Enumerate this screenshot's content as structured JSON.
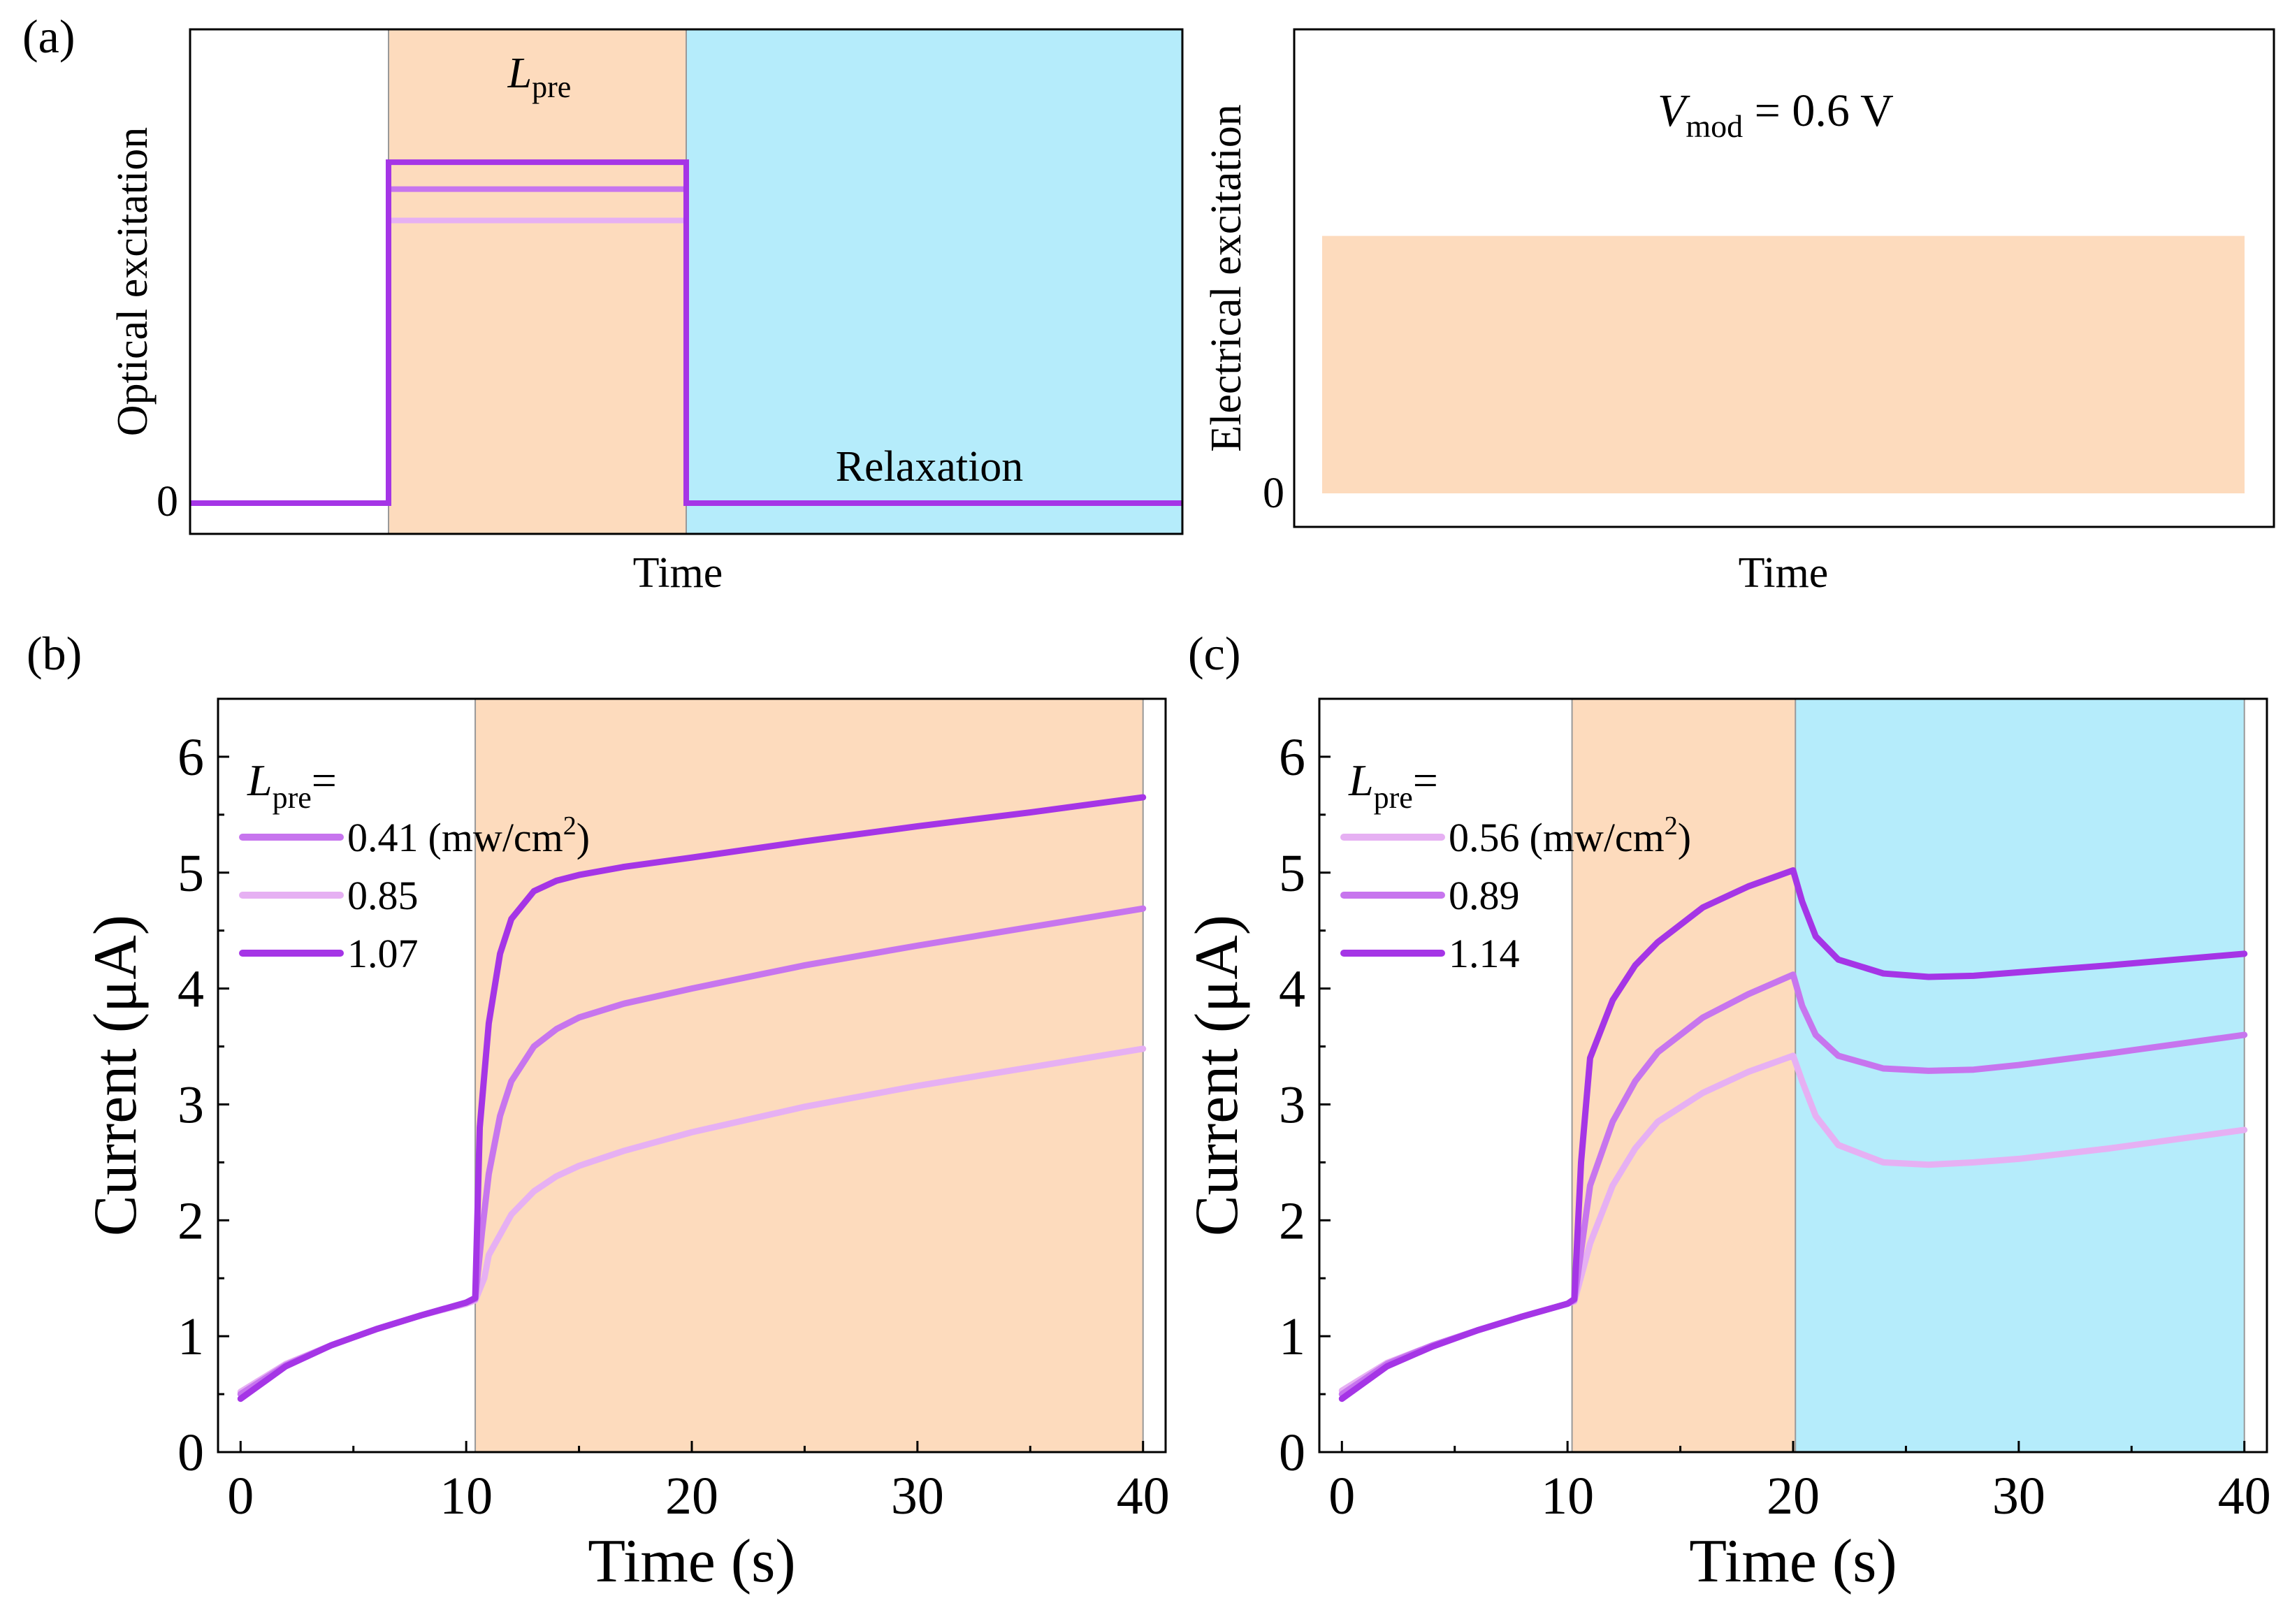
{
  "colors": {
    "orange": "#fddbbd",
    "cyan": "#b5ecfb",
    "light": "#e6b0f3",
    "mid": "#c775ee",
    "dark": "#a535e6"
  },
  "panel_labels": {
    "a": "(a)",
    "b": "(b)",
    "c": "(c)"
  },
  "chart_data": [
    {
      "type": "line",
      "panel": "a-left",
      "ylabel": "Optical excitation",
      "xlabel": "Time",
      "y_tick": "0",
      "annotations": {
        "lpre_main": "L",
        "lpre_sub": "pre",
        "relaxation": "Relaxation"
      },
      "shading": [
        {
          "from": 0.2,
          "to": 0.5,
          "color": "orange"
        },
        {
          "from": 0.5,
          "to": 1.0,
          "color": "cyan"
        }
      ],
      "x": [
        0,
        0.2,
        0.2,
        0.5,
        0.5,
        1.0
      ],
      "series": [
        {
          "color": "light",
          "values": [
            0,
            0,
            0.63,
            0.63,
            0,
            0
          ]
        },
        {
          "color": "mid",
          "values": [
            0,
            0,
            0.7,
            0.7,
            0,
            0
          ]
        },
        {
          "color": "dark",
          "values": [
            0,
            0,
            0.76,
            0.76,
            0,
            0
          ]
        }
      ],
      "ylim": [
        0,
        1
      ]
    },
    {
      "type": "area",
      "panel": "a-right",
      "ylabel": "Electrical excitation",
      "xlabel": "Time",
      "y_tick": "0",
      "annotation": {
        "main": "V",
        "sub": "mod",
        "rest": " = 0.6 V"
      },
      "level": 0.6,
      "ylim": [
        0,
        1
      ]
    },
    {
      "type": "line",
      "panel": "b",
      "xlabel": "Time (s)",
      "ylabel": "Current (μA)",
      "xlim": [
        -1,
        41
      ],
      "ylim": [
        0,
        6.5
      ],
      "xticks": [
        0,
        10,
        20,
        30,
        40
      ],
      "yticks": [
        0,
        1,
        2,
        3,
        4,
        5,
        6
      ],
      "shading": [
        {
          "from": 10.4,
          "to": 40,
          "color": "orange"
        }
      ],
      "legend": {
        "title_main": "L",
        "title_sub": "pre",
        "title_eq": "=",
        "entries": [
          {
            "color": "mid",
            "label": "0.41",
            "unit_a": "(mw/cm",
            "unit_sup": "2",
            "unit_b": ")"
          },
          {
            "color": "light",
            "label": "0.85"
          },
          {
            "color": "dark",
            "label": "1.07"
          }
        ]
      },
      "series": [
        {
          "color": "light",
          "x": [
            0,
            2,
            4,
            6,
            8,
            10,
            10.4,
            10.8,
            11,
            12,
            13,
            14,
            15,
            17,
            20,
            25,
            30,
            35,
            40
          ],
          "values": [
            0.52,
            0.76,
            0.92,
            1.06,
            1.18,
            1.28,
            1.31,
            1.5,
            1.7,
            2.05,
            2.25,
            2.38,
            2.47,
            2.6,
            2.76,
            2.98,
            3.16,
            3.32,
            3.48
          ]
        },
        {
          "color": "mid",
          "x": [
            0,
            2,
            4,
            6,
            8,
            10,
            10.4,
            10.7,
            11,
            11.5,
            12,
            13,
            14,
            15,
            17,
            20,
            25,
            30,
            35,
            40
          ],
          "values": [
            0.5,
            0.75,
            0.92,
            1.06,
            1.18,
            1.29,
            1.32,
            1.9,
            2.4,
            2.9,
            3.2,
            3.5,
            3.65,
            3.75,
            3.87,
            4.0,
            4.2,
            4.37,
            4.53,
            4.69
          ]
        },
        {
          "color": "dark",
          "x": [
            0,
            2,
            4,
            6,
            8,
            10,
            10.4,
            10.6,
            11,
            11.5,
            12,
            13,
            14,
            15,
            17,
            20,
            25,
            30,
            35,
            40
          ],
          "values": [
            0.46,
            0.74,
            0.92,
            1.06,
            1.18,
            1.29,
            1.33,
            2.8,
            3.7,
            4.3,
            4.6,
            4.84,
            4.93,
            4.98,
            5.05,
            5.13,
            5.27,
            5.4,
            5.52,
            5.65
          ]
        }
      ]
    },
    {
      "type": "line",
      "panel": "c",
      "xlabel": "Time (s)",
      "ylabel": "Current (μA)",
      "xlim": [
        -1,
        41
      ],
      "ylim": [
        0,
        6.5
      ],
      "xticks": [
        0,
        10,
        20,
        30,
        40
      ],
      "yticks": [
        0,
        1,
        2,
        3,
        4,
        5,
        6
      ],
      "shading": [
        {
          "from": 10.2,
          "to": 20.1,
          "color": "orange"
        },
        {
          "from": 20.1,
          "to": 40,
          "color": "cyan"
        }
      ],
      "legend": {
        "title_main": "L",
        "title_sub": "pre",
        "title_eq": "=",
        "entries": [
          {
            "color": "light",
            "label": "0.56",
            "unit_a": "(mw/cm",
            "unit_sup": "2",
            "unit_b": ")"
          },
          {
            "color": "mid",
            "label": "0.89"
          },
          {
            "color": "dark",
            "label": "1.14"
          }
        ]
      },
      "series": [
        {
          "color": "light",
          "x": [
            0,
            2,
            4,
            6,
            8,
            10,
            10.3,
            11,
            12,
            13,
            14,
            16,
            18,
            20,
            20.4,
            21,
            22,
            24,
            26,
            28,
            30,
            34,
            40
          ],
          "values": [
            0.53,
            0.77,
            0.92,
            1.05,
            1.17,
            1.28,
            1.3,
            1.8,
            2.3,
            2.62,
            2.85,
            3.1,
            3.28,
            3.42,
            3.2,
            2.9,
            2.65,
            2.5,
            2.48,
            2.5,
            2.53,
            2.62,
            2.78
          ]
        },
        {
          "color": "mid",
          "x": [
            0,
            2,
            4,
            6,
            8,
            10,
            10.3,
            11,
            12,
            13,
            14,
            16,
            18,
            20,
            20.4,
            21,
            22,
            24,
            26,
            28,
            30,
            34,
            40
          ],
          "values": [
            0.5,
            0.76,
            0.92,
            1.05,
            1.17,
            1.28,
            1.31,
            2.3,
            2.85,
            3.2,
            3.45,
            3.75,
            3.95,
            4.12,
            3.85,
            3.6,
            3.42,
            3.31,
            3.29,
            3.3,
            3.34,
            3.44,
            3.6
          ]
        },
        {
          "color": "dark",
          "x": [
            0,
            2,
            4,
            6,
            8,
            10,
            10.3,
            10.6,
            11,
            12,
            13,
            14,
            16,
            18,
            20,
            20.4,
            21,
            22,
            24,
            26,
            28,
            30,
            34,
            40
          ],
          "values": [
            0.46,
            0.74,
            0.91,
            1.05,
            1.17,
            1.28,
            1.32,
            2.5,
            3.4,
            3.9,
            4.2,
            4.4,
            4.7,
            4.88,
            5.02,
            4.75,
            4.45,
            4.25,
            4.13,
            4.1,
            4.11,
            4.14,
            4.2,
            4.3
          ]
        }
      ]
    }
  ]
}
